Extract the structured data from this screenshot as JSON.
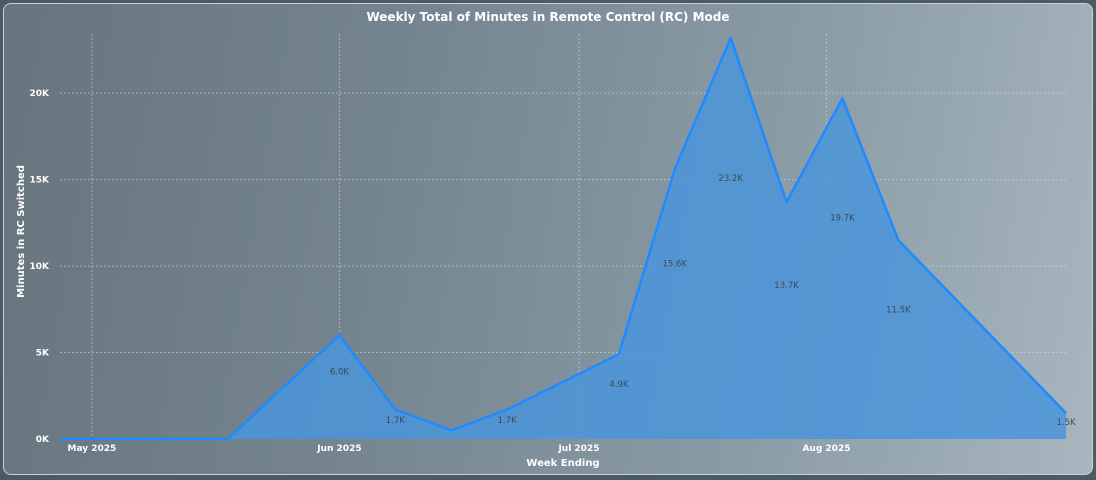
{
  "chart_data": {
    "type": "area",
    "title": "Weekly Total of Minutes in Remote Control (RC) Mode",
    "xlabel": "Week Ending",
    "ylabel": "Minutes in RC Switched",
    "ylim": [
      0,
      24000
    ],
    "y_ticks": [
      {
        "value": 0,
        "label": "0K"
      },
      {
        "value": 5000,
        "label": "5K"
      },
      {
        "value": 10000,
        "label": "10K"
      },
      {
        "value": 15000,
        "label": "15K"
      },
      {
        "value": 20000,
        "label": "20K"
      }
    ],
    "x_ticks": [
      {
        "date": "2025-05-01",
        "label": "May 2025"
      },
      {
        "date": "2025-06-01",
        "label": "Jun 2025"
      },
      {
        "date": "2025-07-01",
        "label": "Jul 2025"
      },
      {
        "date": "2025-08-01",
        "label": "Aug 2025"
      }
    ],
    "x_range": [
      "2025-04-27",
      "2025-08-31"
    ],
    "grid": true,
    "color": "#1f8bff",
    "fill_color": "#4a95da",
    "points": [
      {
        "date": "2025-04-27",
        "value": 0,
        "label": ""
      },
      {
        "date": "2025-05-18",
        "value": 0,
        "label": ""
      },
      {
        "date": "2025-06-01",
        "value": 6000,
        "label": "6.0K"
      },
      {
        "date": "2025-06-08",
        "value": 1700,
        "label": "1.7K"
      },
      {
        "date": "2025-06-15",
        "value": 500,
        "label": ""
      },
      {
        "date": "2025-06-22",
        "value": 1700,
        "label": "1.7K"
      },
      {
        "date": "2025-07-06",
        "value": 4900,
        "label": "4.9K"
      },
      {
        "date": "2025-07-13",
        "value": 15600,
        "label": "15.6K"
      },
      {
        "date": "2025-07-20",
        "value": 23200,
        "label": "23.2K"
      },
      {
        "date": "2025-07-27",
        "value": 13700,
        "label": "13.7K"
      },
      {
        "date": "2025-08-03",
        "value": 19700,
        "label": "19.7K"
      },
      {
        "date": "2025-08-10",
        "value": 11500,
        "label": "11.5K"
      },
      {
        "date": "2025-08-31",
        "value": 1500,
        "label": "1.5K"
      }
    ]
  }
}
